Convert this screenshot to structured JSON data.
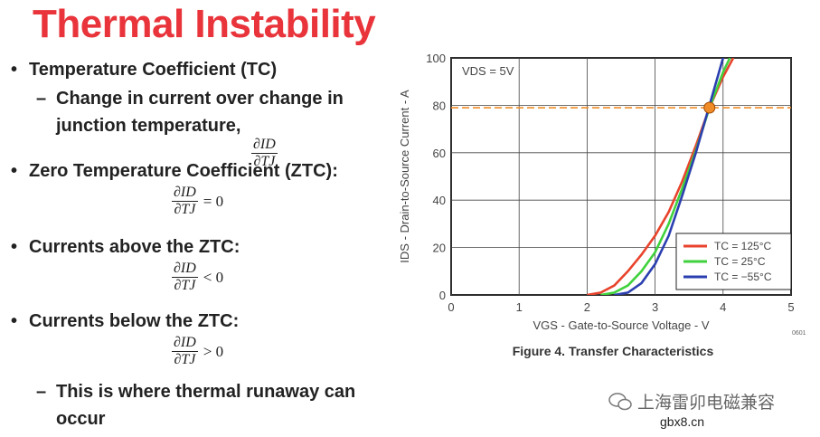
{
  "title": "Thermal Instability",
  "bullets": [
    {
      "text": "Temperature Coefficient (TC)",
      "level": 1
    },
    {
      "text": "Change in current over change in junction temperature,",
      "level": 2,
      "formula": {
        "num": "∂ID",
        "den": "∂TJ"
      }
    },
    {
      "text": "Zero Temperature Coefficient (ZTC):",
      "level": 1,
      "formula": {
        "num": "∂ID",
        "den": "∂TJ",
        "rel": "= 0"
      }
    },
    {
      "text": "Currents above the ZTC:",
      "level": 1,
      "formula": {
        "num": "∂ID",
        "den": "∂TJ",
        "rel": "< 0"
      }
    },
    {
      "text": "Currents below the ZTC:",
      "level": 1,
      "formula": {
        "num": "∂ID",
        "den": "∂TJ",
        "rel": "> 0"
      }
    },
    {
      "text": "This is where thermal runaway can occur",
      "level": 2
    }
  ],
  "chart_data": {
    "type": "line",
    "x_label": "VGS - Gate-to-Source Voltage - V",
    "y_label": "IDS - Drain-to-Source Current - A",
    "annotation": "VDS = 5V",
    "caption": "Figure 4. Transfer Characteristics",
    "code": "0601",
    "xlim": [
      0,
      5
    ],
    "xticks": [
      0,
      1,
      2,
      3,
      4,
      5
    ],
    "ylim": [
      0,
      100
    ],
    "yticks": [
      0,
      20,
      40,
      60,
      80,
      100
    ],
    "grid": true,
    "reference_line": {
      "value": 79,
      "color": "#f08c28"
    },
    "ztc_point": {
      "x": 3.8,
      "y": 79,
      "color": "#f08c28"
    },
    "legend": "lower right",
    "series": [
      {
        "name": "TC = 125°C",
        "color": "#e8432c",
        "x": [
          2.0,
          2.2,
          2.4,
          2.6,
          2.8,
          3.0,
          3.2,
          3.4,
          3.6,
          3.8,
          4.0,
          4.15
        ],
        "values": [
          0,
          1,
          4,
          10,
          17,
          25,
          35,
          48,
          63,
          79,
          92,
          100
        ]
      },
      {
        "name": "TC = 25°C",
        "color": "#3fd23c",
        "x": [
          2.2,
          2.4,
          2.6,
          2.8,
          3.0,
          3.2,
          3.4,
          3.6,
          3.8,
          4.0,
          4.1
        ],
        "values": [
          0,
          1,
          4,
          10,
          18,
          30,
          45,
          61,
          79,
          94,
          100
        ]
      },
      {
        "name": "TC = −55°C",
        "color": "#2b3fb0",
        "x": [
          2.4,
          2.6,
          2.8,
          3.0,
          3.2,
          3.4,
          3.6,
          3.8,
          4.0
        ],
        "values": [
          0,
          1,
          5,
          13,
          25,
          42,
          60,
          80,
          100
        ]
      }
    ]
  },
  "watermark": {
    "name": "上海雷卯电磁兼容",
    "site": "gbx8.cn"
  }
}
